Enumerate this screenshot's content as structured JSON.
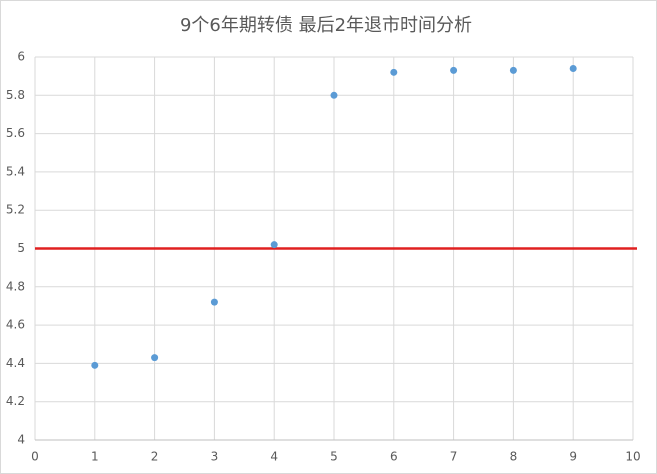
{
  "chart_data": {
    "type": "scatter",
    "title": "9个6年期转债 最后2年退市时间分析",
    "x": [
      1,
      2,
      3,
      4,
      5,
      6,
      7,
      8,
      9
    ],
    "values": [
      4.39,
      4.43,
      4.72,
      5.02,
      5.8,
      5.92,
      5.93,
      5.93,
      5.94
    ],
    "color": "#5b9bd5",
    "xlim": [
      0,
      10
    ],
    "xticks": [
      0,
      1,
      2,
      3,
      4,
      5,
      6,
      7,
      8,
      9,
      10
    ],
    "ylim": [
      4,
      6
    ],
    "yticks": [
      4,
      4.2,
      4.4,
      4.6,
      4.8,
      5,
      5.2,
      5.4,
      5.6,
      5.8,
      6
    ],
    "grid": true,
    "hline": {
      "value": 5,
      "color": "#e02020"
    }
  }
}
